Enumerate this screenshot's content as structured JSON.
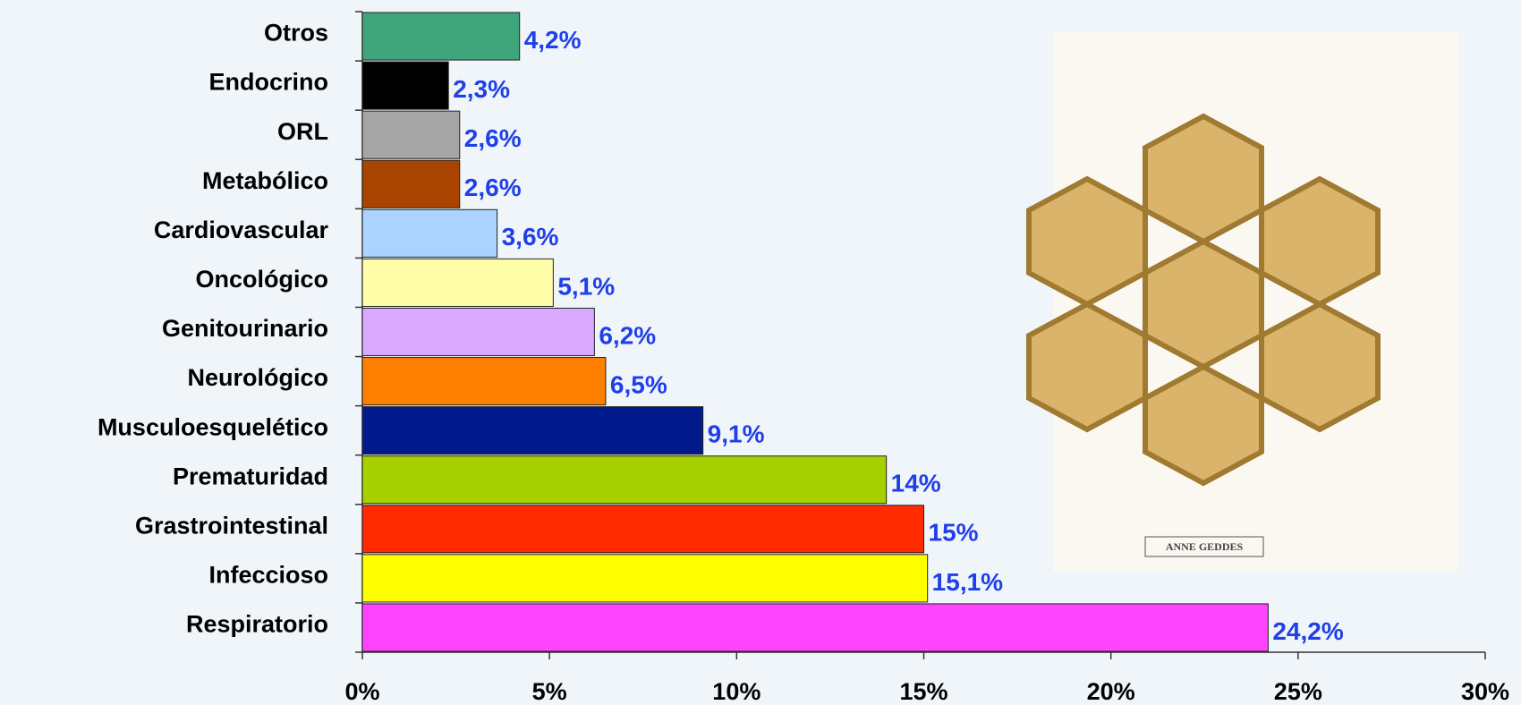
{
  "chart_data": {
    "type": "barh",
    "categories": [
      "Otros",
      "Endocrino",
      "ORL",
      "Metabólico",
      "Cardiovascular",
      "Oncológico",
      "Genitourinario",
      "Neurológico",
      "Musculoesquelético",
      "Prematuridad",
      "Grastrointestinal",
      "Infeccioso",
      "Respiratorio"
    ],
    "values": [
      4.2,
      2.3,
      2.6,
      2.6,
      3.6,
      5.1,
      6.2,
      6.5,
      9.1,
      14,
      15,
      15.1,
      24.2
    ],
    "value_labels": [
      "4,2%",
      "2,3%",
      "2,6%",
      "2,6%",
      "3,6%",
      "5,1%",
      "6,2%",
      "6,5%",
      "9,1%",
      "14%",
      "15%",
      "15,1%",
      "24,2%"
    ],
    "colors": [
      "#3fa57a",
      "#000000",
      "#a6a6a6",
      "#a84400",
      "#aad4ff",
      "#ffffaa",
      "#d9aaff",
      "#ff7f00",
      "#001a8c",
      "#a6d000",
      "#ff2a00",
      "#ffff00",
      "#ff44ff"
    ],
    "label_color": "#1f3fe8",
    "xlim": [
      0,
      30
    ],
    "xticks": [
      {
        "value": 0,
        "label": "0%"
      },
      {
        "value": 5,
        "label": "5%"
      },
      {
        "value": 10,
        "label": "10%"
      },
      {
        "value": 15,
        "label": "15%"
      },
      {
        "value": 20,
        "label": "20%"
      },
      {
        "value": 25,
        "label": "25%"
      },
      {
        "value": 30,
        "label": "30%"
      }
    ]
  },
  "photo": {
    "caption": "ANNE GEDDES"
  }
}
